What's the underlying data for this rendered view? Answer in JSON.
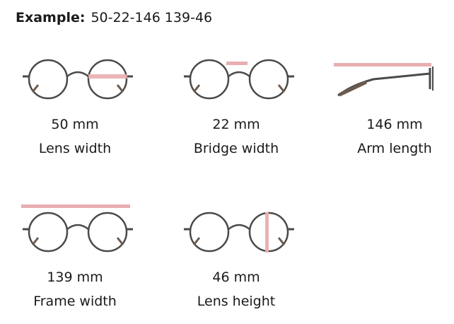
{
  "header": {
    "label": "Example:",
    "value": "50-22-146 139-46"
  },
  "measurements": [
    {
      "value": "50 mm",
      "label": "Lens width"
    },
    {
      "value": "22 mm",
      "label": "Bridge width"
    },
    {
      "value": "146 mm",
      "label": "Arm length"
    },
    {
      "value": "139 mm",
      "label": "Frame width"
    },
    {
      "value": "46 mm",
      "label": "Lens height"
    }
  ],
  "colors": {
    "frame": "#4a4a4a",
    "temple_tip": "#6b5a4e",
    "highlight": "#e9aeb0",
    "text": "#1a1a1a"
  }
}
